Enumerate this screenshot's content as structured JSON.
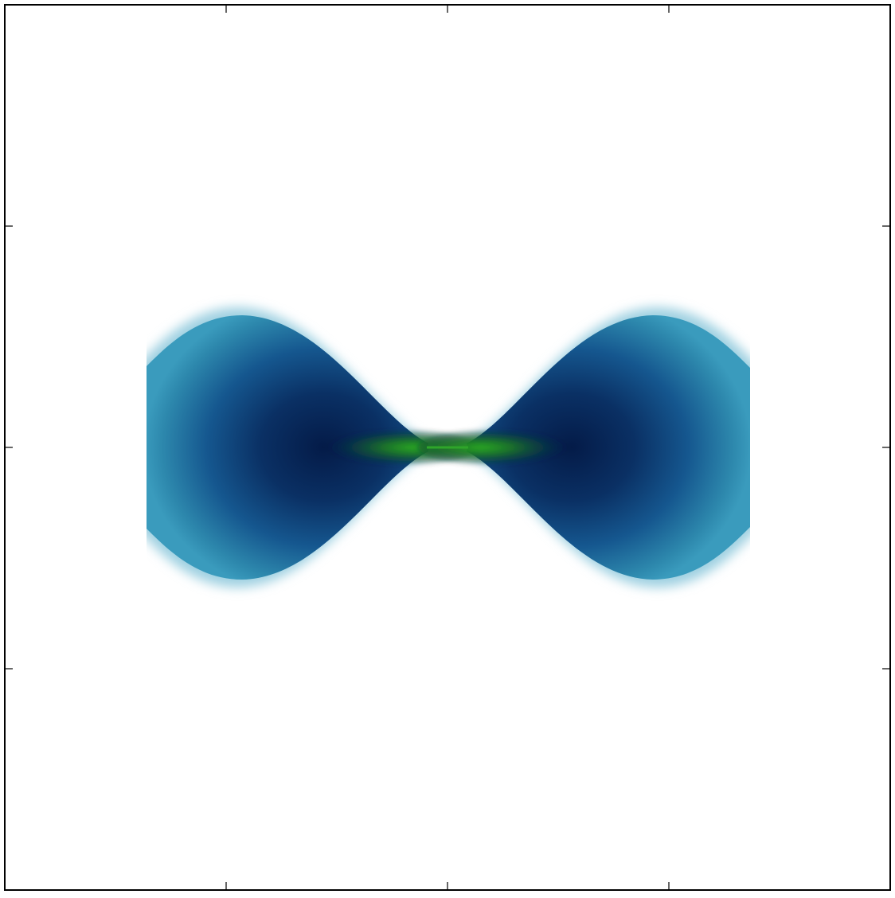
{
  "chart_data": {
    "type": "heatmap",
    "title": "",
    "xlabel": "",
    "ylabel": "",
    "tick_labels_shown": false,
    "x_ticks": 3,
    "y_ticks": 3,
    "grid": false,
    "legend": "none",
    "shape": "symmetric bow-tie / hourglass lobes pinched at center",
    "colormap": {
      "outer_edge": "#d2ebf2",
      "light": "#3595b8",
      "mid": "#15578f",
      "dark": "#0a3064",
      "darkest": "#041b48",
      "core": "#0e5a1c",
      "core_bright": "#2aaa1e",
      "center_line": "#2fa52a"
    }
  }
}
